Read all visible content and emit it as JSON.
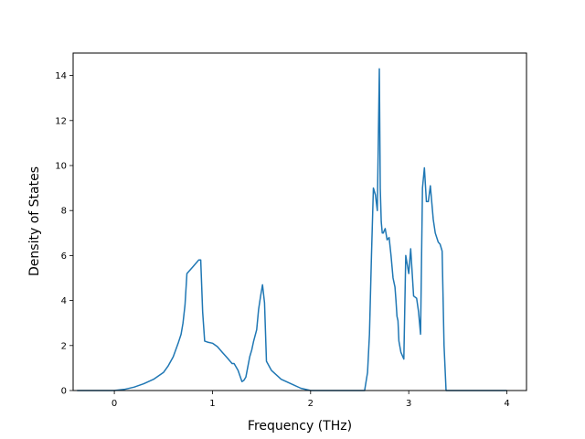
{
  "chart_data": {
    "type": "line",
    "title": "",
    "xlabel": "Frequency (THz)",
    "ylabel": "Density of States",
    "xlim": [
      -0.42,
      4.2
    ],
    "ylim": [
      0,
      15
    ],
    "xticks": [
      0,
      1,
      2,
      3,
      4
    ],
    "xtick_labels": [
      "0",
      "1",
      "2",
      "3",
      "4"
    ],
    "yticks": [
      0,
      2,
      4,
      6,
      8,
      10,
      12,
      14
    ],
    "ytick_labels": [
      "0",
      "2",
      "4",
      "6",
      "8",
      "10",
      "12",
      "14"
    ],
    "grid": false,
    "legend": "none",
    "color": "#1f77b4",
    "series": [
      {
        "x": [
          -0.38,
          -0.2,
          0,
          0.1,
          0.2,
          0.3,
          0.4,
          0.45,
          0.5,
          0.55,
          0.6,
          0.65,
          0.68,
          0.7,
          0.72,
          0.74,
          0.76,
          0.8,
          0.84,
          0.86,
          0.88,
          0.9,
          0.92,
          0.95,
          1.0,
          1.05,
          1.1,
          1.15,
          1.2,
          1.22,
          1.26,
          1.3,
          1.32,
          1.34,
          1.38,
          1.4,
          1.42,
          1.45,
          1.47,
          1.49,
          1.51,
          1.53,
          1.55,
          1.6,
          1.7,
          1.8,
          1.9,
          2.0,
          2.3,
          2.55,
          2.58,
          2.6,
          2.62,
          2.64,
          2.66,
          2.68,
          2.7,
          2.71,
          2.72,
          2.73,
          2.74,
          2.75,
          2.76,
          2.78,
          2.8,
          2.82,
          2.84,
          2.86,
          2.87,
          2.88,
          2.89,
          2.9,
          2.92,
          2.95,
          2.97,
          3.0,
          3.02,
          3.05,
          3.08,
          3.1,
          3.12,
          3.14,
          3.16,
          3.18,
          3.2,
          3.22,
          3.25,
          3.27,
          3.3,
          3.32,
          3.34,
          3.36,
          3.38,
          3.39,
          3.4,
          3.42,
          3.43,
          3.44,
          3.45,
          3.47,
          3.5,
          3.52,
          3.54,
          3.56,
          3.58,
          3.6,
          3.62,
          3.65,
          3.8,
          4.0
        ],
        "y": [
          0,
          0,
          0,
          0.05,
          0.15,
          0.3,
          0.5,
          0.65,
          0.8,
          1.1,
          1.5,
          2.1,
          2.5,
          3.0,
          3.8,
          5.2,
          5.3,
          5.5,
          5.7,
          5.8,
          5.8,
          3.5,
          2.2,
          2.15,
          2.1,
          1.95,
          1.7,
          1.45,
          1.2,
          1.2,
          0.9,
          0.4,
          0.45,
          0.6,
          1.5,
          1.8,
          2.2,
          2.7,
          3.6,
          4.2,
          4.7,
          3.9,
          1.3,
          0.9,
          0.5,
          0.3,
          0.1,
          0,
          0,
          0,
          0.8,
          2.5,
          6.0,
          9.0,
          8.7,
          8.0,
          14.3,
          9.0,
          7.5,
          7.0,
          7.0,
          7.1,
          7.2,
          6.7,
          6.8,
          6.0,
          5.0,
          4.6,
          4.0,
          3.3,
          3.1,
          2.2,
          1.7,
          1.4,
          6.0,
          5.2,
          6.3,
          4.2,
          4.1,
          3.5,
          2.5,
          9.0,
          9.9,
          8.4,
          8.4,
          9.1,
          7.6,
          7.0,
          6.6,
          6.5,
          6.2,
          2.0,
          0,
          0,
          0,
          0,
          0,
          0,
          0,
          0,
          0,
          0,
          0,
          0,
          0,
          0,
          0,
          0,
          0,
          0
        ],
        "x_fix": []
      }
    ]
  }
}
